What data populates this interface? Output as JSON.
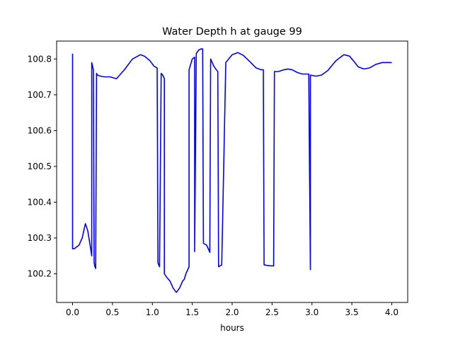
{
  "chart_data": {
    "type": "line",
    "title": "Water Depth h at gauge 99",
    "xlabel": "hours",
    "ylabel": "",
    "xlim": [
      -0.2,
      4.2
    ],
    "ylim": [
      100.12,
      100.85
    ],
    "xticks": [
      0.0,
      0.5,
      1.0,
      1.5,
      2.0,
      2.5,
      3.0,
      3.5,
      4.0
    ],
    "xtick_labels": [
      "0.0",
      "0.5",
      "1.0",
      "1.5",
      "2.0",
      "2.5",
      "3.0",
      "3.5",
      "4.0"
    ],
    "yticks": [
      100.2,
      100.3,
      100.4,
      100.5,
      100.6,
      100.7,
      100.8
    ],
    "ytick_labels": [
      "100.2",
      "100.3",
      "100.4",
      "100.5",
      "100.6",
      "100.7",
      "100.8"
    ],
    "grid": false,
    "legend": "none",
    "series": [
      {
        "color": "#0000ff",
        "x": [
          0.0,
          0.0,
          0.02,
          0.08,
          0.12,
          0.16,
          0.19,
          0.22,
          0.24,
          0.24,
          0.26,
          0.27,
          0.28,
          0.29,
          0.3,
          0.31,
          0.35,
          0.4,
          0.47,
          0.55,
          0.65,
          0.75,
          0.85,
          0.9,
          0.97,
          1.02,
          1.06,
          1.07,
          1.09,
          1.11,
          1.13,
          1.15,
          1.15,
          1.18,
          1.22,
          1.26,
          1.3,
          1.34,
          1.38,
          1.4,
          1.42,
          1.44,
          1.46,
          1.46,
          1.5,
          1.53,
          1.53,
          1.55,
          1.58,
          1.61,
          1.63,
          1.64,
          1.68,
          1.7,
          1.72,
          1.73,
          1.77,
          1.8,
          1.82,
          1.83,
          1.87,
          1.87,
          1.92,
          2.0,
          2.07,
          2.14,
          2.22,
          2.3,
          2.36,
          2.39,
          2.4,
          2.45,
          2.5,
          2.52,
          2.53,
          2.58,
          2.65,
          2.7,
          2.75,
          2.82,
          2.88,
          2.9,
          2.95,
          2.96,
          2.98,
          2.98,
          3.05,
          3.12,
          3.2,
          3.3,
          3.4,
          3.47,
          3.52,
          3.58,
          3.65,
          3.72,
          3.8,
          3.88,
          3.95,
          4.0
        ],
        "y": [
          100.815,
          100.27,
          100.27,
          100.28,
          100.3,
          100.34,
          100.32,
          100.28,
          100.25,
          100.79,
          100.77,
          100.23,
          100.22,
          100.215,
          100.76,
          100.755,
          100.752,
          100.75,
          100.75,
          100.745,
          100.77,
          100.8,
          100.812,
          100.808,
          100.795,
          100.78,
          100.775,
          100.23,
          100.22,
          100.76,
          100.755,
          100.745,
          100.2,
          100.19,
          100.18,
          100.16,
          100.148,
          100.16,
          100.18,
          100.185,
          100.2,
          100.21,
          100.22,
          100.77,
          100.8,
          100.805,
          100.262,
          100.815,
          100.825,
          100.828,
          100.828,
          100.285,
          100.28,
          100.27,
          100.26,
          100.8,
          100.78,
          100.77,
          100.765,
          100.22,
          100.225,
          100.23,
          100.79,
          100.812,
          100.818,
          100.81,
          100.793,
          100.775,
          100.77,
          100.77,
          100.225,
          100.223,
          100.222,
          100.222,
          100.765,
          100.765,
          100.77,
          100.772,
          100.77,
          100.762,
          100.758,
          100.758,
          100.758,
          100.758,
          100.212,
          100.755,
          100.752,
          100.755,
          100.768,
          100.795,
          100.812,
          100.808,
          100.795,
          100.778,
          100.772,
          100.775,
          100.785,
          100.79,
          100.79,
          100.79
        ]
      }
    ]
  }
}
